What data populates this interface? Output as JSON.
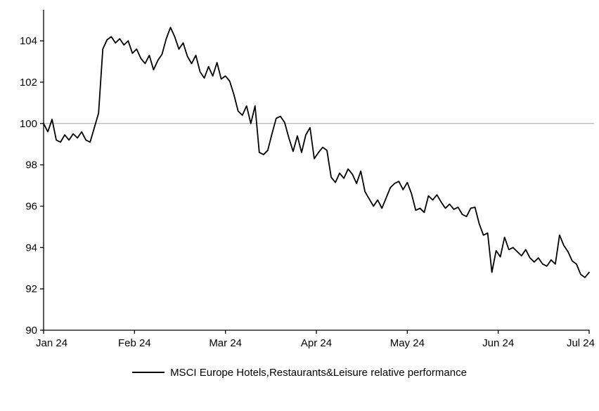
{
  "legend": {
    "label": "MSCI Europe Hotels,Restaurants&Leisure relative performance"
  },
  "chart_data": {
    "type": "line",
    "title": "",
    "xlabel": "",
    "ylabel": "",
    "x_ticks": [
      "Jan 24",
      "Feb 24",
      "Mar 24",
      "Apr 24",
      "May 24",
      "Jun 24",
      "Jul 24"
    ],
    "y_ticks": [
      90,
      92,
      94,
      96,
      98,
      100,
      102,
      104
    ],
    "ylim": [
      90,
      105.5
    ],
    "baseline": 100,
    "grid": "horizontal-baseline-only",
    "legend_position": "bottom",
    "line_color": "#000000",
    "axis_color": "#000000",
    "gridline_color": "#a6a6a6",
    "series": [
      {
        "name": "MSCI Europe Hotels,Restaurants&Leisure relative performance",
        "values": [
          100.0,
          99.6,
          100.2,
          99.2,
          99.1,
          99.45,
          99.2,
          99.5,
          99.3,
          99.6,
          99.2,
          99.1,
          99.8,
          100.5,
          103.6,
          104.05,
          104.2,
          103.9,
          104.1,
          103.8,
          104.0,
          103.4,
          103.6,
          103.15,
          102.9,
          103.3,
          102.6,
          103.05,
          103.35,
          104.1,
          104.65,
          104.2,
          103.6,
          103.9,
          103.25,
          102.9,
          103.3,
          102.5,
          102.2,
          102.75,
          102.3,
          102.95,
          102.15,
          102.3,
          102.05,
          101.4,
          100.6,
          100.4,
          100.85,
          100.0,
          100.85,
          98.6,
          98.5,
          98.7,
          99.5,
          100.25,
          100.35,
          100.05,
          99.3,
          98.65,
          99.4,
          98.6,
          99.45,
          99.8,
          98.3,
          98.6,
          98.85,
          98.7,
          97.4,
          97.15,
          97.6,
          97.35,
          97.8,
          97.55,
          97.1,
          97.7,
          96.7,
          96.35,
          96.0,
          96.3,
          95.9,
          96.4,
          96.9,
          97.1,
          97.2,
          96.8,
          97.15,
          96.6,
          95.8,
          95.9,
          95.7,
          96.5,
          96.3,
          96.55,
          96.2,
          95.9,
          96.1,
          95.85,
          95.95,
          95.6,
          95.5,
          95.9,
          95.95,
          95.15,
          94.6,
          94.7,
          92.8,
          93.85,
          93.55,
          94.5,
          93.9,
          94.0,
          93.8,
          93.6,
          93.9,
          93.5,
          93.3,
          93.5,
          93.2,
          93.1,
          93.4,
          93.2,
          94.6,
          94.1,
          93.8,
          93.35,
          93.2,
          92.7,
          92.55,
          92.8
        ]
      }
    ]
  }
}
